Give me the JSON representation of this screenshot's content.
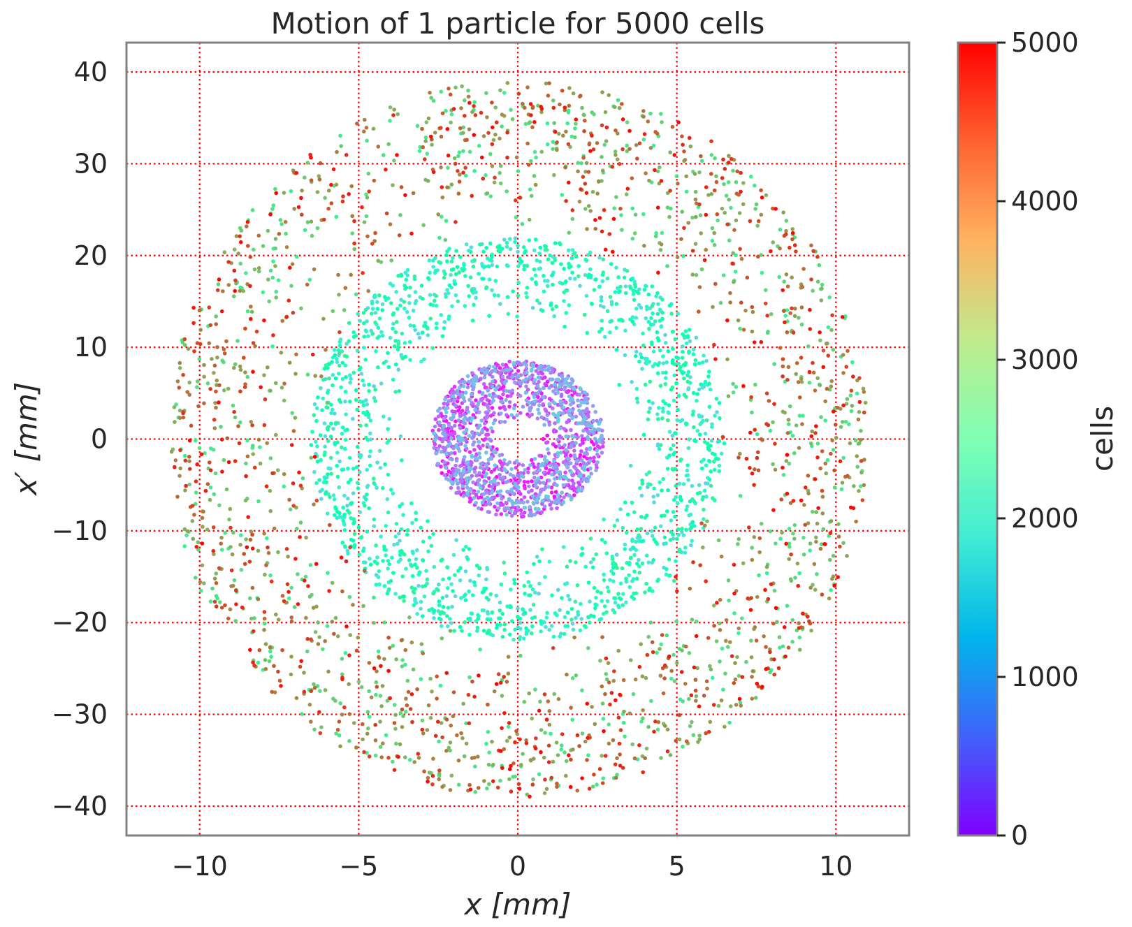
{
  "chart_data": {
    "type": "scatter",
    "title": "Motion of 1 particle for 5000 cells",
    "xlabel": "x [mm]",
    "ylabel": "x′ [mm]",
    "xlim": [
      -12.3,
      12.3
    ],
    "ylim": [
      -43.2,
      43.2
    ],
    "x_ticks": [
      -10,
      -5,
      0,
      5,
      10
    ],
    "x_tick_labels": [
      "−10",
      "−5",
      "0",
      "5",
      "10"
    ],
    "y_ticks": [
      -40,
      -30,
      -20,
      -10,
      0,
      10,
      20,
      30,
      40
    ],
    "y_tick_labels": [
      "−40",
      "−30",
      "−20",
      "−10",
      "0",
      "10",
      "20",
      "30",
      "40"
    ],
    "grid": true,
    "grid_color": "#ff0000",
    "grid_style": "dotted",
    "colormap": "rainbow",
    "colorbar": {
      "label": "cells",
      "range": [
        0,
        5000
      ],
      "ticks": [
        0,
        1000,
        2000,
        3000,
        4000,
        5000
      ],
      "tick_labels": [
        "0",
        "1000",
        "2000",
        "3000",
        "4000",
        "5000"
      ]
    },
    "series": [
      {
        "description": "phase-space trajectory sampled once per cell, colored by cell index",
        "n_points": 5000,
        "envelope": [
          {
            "cells": [
              0,
              1500
            ],
            "x_halfwidth": 2.7,
            "xp_halfwidth": 8.5
          },
          {
            "cells": [
              1500,
              3000
            ],
            "x_halfwidth": 6.5,
            "xp_halfwidth": 22
          },
          {
            "cells": [
              3000,
              5000
            ],
            "x_halfwidth": 11.0,
            "xp_halfwidth": 39
          }
        ]
      }
    ]
  }
}
